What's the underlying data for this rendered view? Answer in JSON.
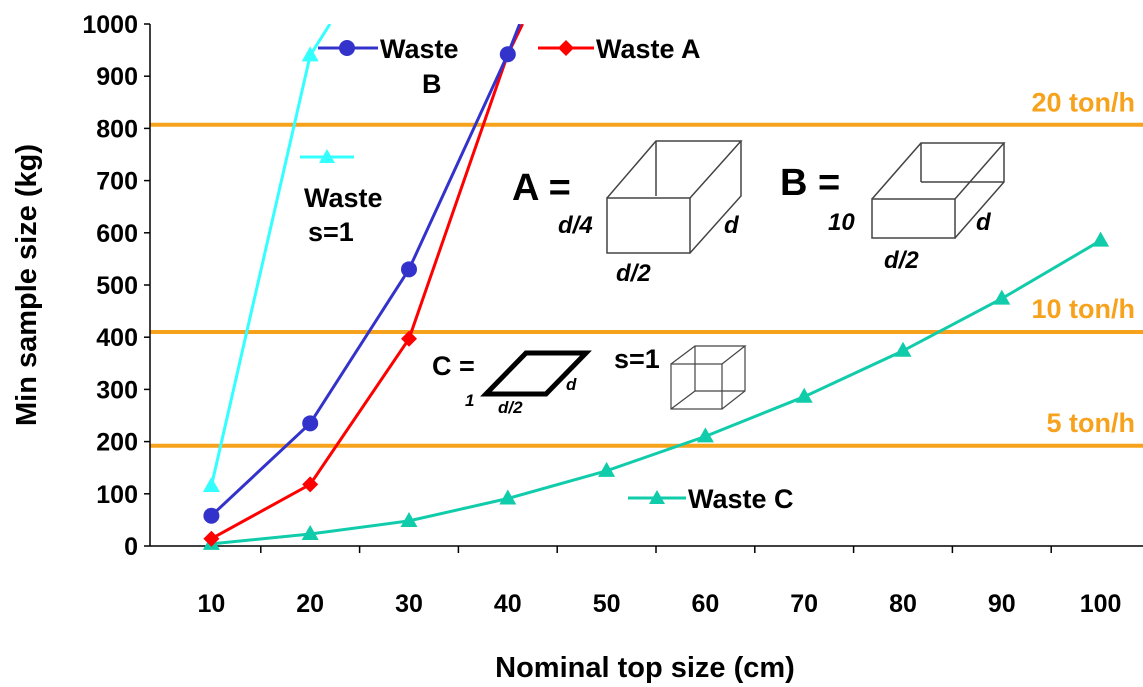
{
  "chart_data": {
    "type": "line",
    "xlabel": "Nominal top size (cm)",
    "ylabel": "Min sample size (kg)",
    "xlim": [
      5,
      105
    ],
    "ylim": [
      0,
      1000
    ],
    "xticks": [
      "10",
      "20",
      "30",
      "40",
      "50",
      "60",
      "70",
      "80",
      "90",
      "100"
    ],
    "yticks": [
      "0",
      "100",
      "200",
      "300",
      "400",
      "500",
      "600",
      "700",
      "800",
      "900",
      "1000"
    ],
    "grid": false,
    "series": [
      {
        "name": "Waste s=1",
        "label_lines": [
          "Waste",
          "s=1"
        ],
        "color": "#33ffff",
        "marker": "triangle",
        "x": [
          10,
          20,
          22
        ],
        "y": [
          115,
          940,
          1000
        ]
      },
      {
        "name": "Waste B",
        "label_lines": [
          "Waste",
          "B"
        ],
        "color": "#3333cc",
        "marker": "circle",
        "x": [
          10,
          20,
          30,
          40,
          41.2
        ],
        "y": [
          58,
          235,
          530,
          942,
          1000
        ]
      },
      {
        "name": "Waste A",
        "label_lines": [
          "Waste A"
        ],
        "color": "#ff0000",
        "marker": "diamond",
        "x": [
          10,
          20,
          30,
          40,
          41.5
        ],
        "y": [
          14,
          118,
          397,
          942,
          1000
        ]
      },
      {
        "name": "Waste C",
        "label_lines": [
          "Waste C"
        ],
        "color": "#11ccaa",
        "marker": "triangle",
        "x": [
          10,
          20,
          30,
          40,
          50,
          60,
          70,
          80,
          90,
          100
        ],
        "y": [
          4,
          23,
          48,
          91,
          144,
          210,
          286,
          374,
          474,
          585
        ]
      }
    ],
    "reference_lines": [
      {
        "label": "20 ton/h",
        "y": 807,
        "color": "#f7a21c"
      },
      {
        "label": "10 ton/h",
        "y": 410,
        "color": "#f7a21c"
      },
      {
        "label": "5 ton/h",
        "y": 192,
        "color": "#f7a21c"
      }
    ],
    "annotations": {
      "shape_a": {
        "letter": "A =",
        "left": "d/4",
        "bottom": "d/2",
        "right": "d"
      },
      "shape_b": {
        "letter": "B =",
        "left": "10",
        "bottom": "d/2",
        "right": "d"
      },
      "shape_c": {
        "letter": "C =",
        "left": "1",
        "bottom": "d/2",
        "right": "d"
      },
      "shape_s": {
        "label": "s=1"
      }
    }
  }
}
